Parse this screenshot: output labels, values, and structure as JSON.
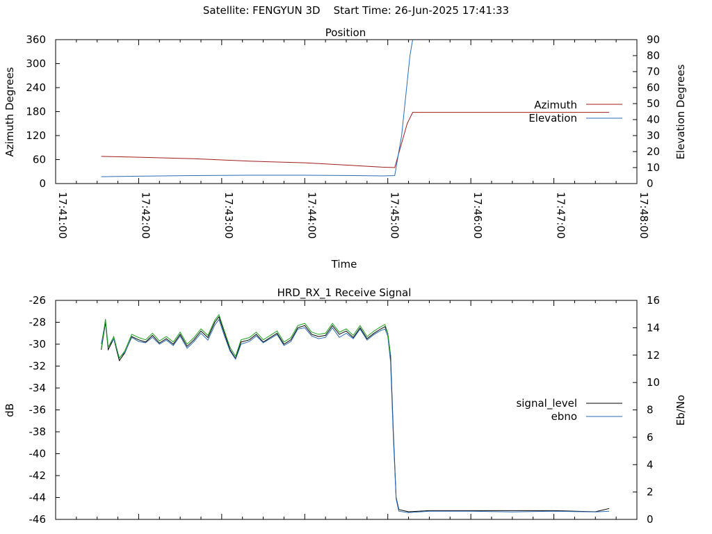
{
  "header": {
    "satellite": "Satellite: FENGYUN 3D",
    "start_time": "Start Time: 26-Jun-2025 17:41:33"
  },
  "colors": {
    "red": "#a01a1a",
    "blue": "#2a6ab8",
    "green": "#1aa01a",
    "black": "#000000"
  },
  "chart_data": [
    {
      "type": "line",
      "title": "Position",
      "xlabel": "Time",
      "ylabel": "Azimuth Degrees",
      "y2label": "Elevation Degrees",
      "x_unit": "seconds since 17:41:00",
      "xlim": [
        0,
        420
      ],
      "x_ticks": [
        "17:41:00",
        "17:42:00",
        "17:43:00",
        "17:44:00",
        "17:45:00",
        "17:46:00",
        "17:47:00",
        "17:48:00"
      ],
      "ylim": [
        0,
        360
      ],
      "y_ticks": [
        0,
        60,
        120,
        180,
        240,
        300,
        360
      ],
      "y2lim": [
        0,
        90
      ],
      "y2_ticks": [
        0,
        10,
        20,
        30,
        40,
        50,
        60,
        70,
        80,
        90
      ],
      "legend_position": "right",
      "series": [
        {
          "name": "Azimuth",
          "axis": "y",
          "color": "red",
          "points": [
            [
              33,
              68
            ],
            [
              60,
              66
            ],
            [
              100,
              62
            ],
            [
              140,
              56
            ],
            [
              180,
              52
            ],
            [
              216,
              45
            ],
            [
              236,
              41
            ],
            [
              245,
              40
            ],
            [
              254,
              150
            ],
            [
              258,
              178
            ],
            [
              300,
              178
            ],
            [
              360,
              178
            ],
            [
              400,
              178
            ]
          ]
        },
        {
          "name": "Elevation",
          "axis": "y2",
          "color": "blue",
          "points": [
            [
              33,
              4.3
            ],
            [
              60,
              4.6
            ],
            [
              100,
              5
            ],
            [
              140,
              5.2
            ],
            [
              180,
              5.2
            ],
            [
              216,
              5
            ],
            [
              236,
              4.8
            ],
            [
              245,
              5
            ],
            [
              250,
              30
            ],
            [
              256,
              80
            ],
            [
              258,
              90
            ]
          ]
        }
      ]
    },
    {
      "type": "line",
      "title": "HRD_RX_1 Receive Signal",
      "ylabel": "dB",
      "y2label": "Eb/No",
      "x_unit": "seconds since 17:41:00",
      "xlim": [
        0,
        420
      ],
      "ylim": [
        -46,
        -26
      ],
      "y_ticks": [
        -46,
        -44,
        -42,
        -40,
        -38,
        -36,
        -34,
        -32,
        -30,
        -28,
        -26
      ],
      "y2lim": [
        0,
        16
      ],
      "y2_ticks": [
        0,
        2,
        4,
        6,
        8,
        10,
        12,
        14,
        16
      ],
      "legend_position": "right",
      "series": [
        {
          "name": "signal_level",
          "axis": "y",
          "color": "black",
          "points": [
            [
              33,
              -30.5
            ],
            [
              36,
              -28
            ],
            [
              38,
              -30.5
            ],
            [
              42,
              -29.5
            ],
            [
              46,
              -31.5
            ],
            [
              50,
              -30.8
            ],
            [
              55,
              -29.3
            ],
            [
              60,
              -29.6
            ],
            [
              65,
              -29.8
            ],
            [
              70,
              -29.2
            ],
            [
              75,
              -29.9
            ],
            [
              80,
              -29.5
            ],
            [
              85,
              -30
            ],
            [
              90,
              -29.1
            ],
            [
              95,
              -30.2
            ],
            [
              100,
              -29.6
            ],
            [
              105,
              -28.8
            ],
            [
              110,
              -29.4
            ],
            [
              115,
              -28
            ],
            [
              118,
              -27.5
            ],
            [
              122,
              -29
            ],
            [
              126,
              -30.5
            ],
            [
              130,
              -31.3
            ],
            [
              134,
              -29.8
            ],
            [
              140,
              -29.6
            ],
            [
              145,
              -29.1
            ],
            [
              150,
              -29.8
            ],
            [
              155,
              -29.4
            ],
            [
              160,
              -29
            ],
            [
              165,
              -30
            ],
            [
              170,
              -29.6
            ],
            [
              175,
              -28.5
            ],
            [
              180,
              -28.3
            ],
            [
              185,
              -29.1
            ],
            [
              190,
              -29.3
            ],
            [
              195,
              -29.2
            ],
            [
              200,
              -28.3
            ],
            [
              205,
              -29.1
            ],
            [
              210,
              -28.8
            ],
            [
              215,
              -29.4
            ],
            [
              220,
              -28.5
            ],
            [
              225,
              -29.5
            ],
            [
              230,
              -29
            ],
            [
              235,
              -28.6
            ],
            [
              238,
              -28.4
            ],
            [
              240,
              -29
            ],
            [
              242,
              -31
            ],
            [
              244,
              -38
            ],
            [
              246,
              -44
            ],
            [
              248,
              -45.1
            ],
            [
              255,
              -45.3
            ],
            [
              270,
              -45.2
            ],
            [
              300,
              -45.2
            ],
            [
              330,
              -45.2
            ],
            [
              360,
              -45.2
            ],
            [
              390,
              -45.3
            ],
            [
              400,
              -45
            ]
          ]
        },
        {
          "name": "ebno",
          "axis": "y2",
          "color": "blue",
          "points": [
            [
              33,
              12.8
            ],
            [
              36,
              14.5
            ],
            [
              38,
              12.6
            ],
            [
              42,
              13.2
            ],
            [
              46,
              11.8
            ],
            [
              50,
              12.2
            ],
            [
              55,
              13.3
            ],
            [
              60,
              13
            ],
            [
              65,
              12.9
            ],
            [
              70,
              13.3
            ],
            [
              75,
              12.8
            ],
            [
              80,
              13.1
            ],
            [
              85,
              12.7
            ],
            [
              90,
              13.4
            ],
            [
              95,
              12.5
            ],
            [
              100,
              13
            ],
            [
              105,
              13.6
            ],
            [
              110,
              13.1
            ],
            [
              115,
              14.2
            ],
            [
              118,
              14.6
            ],
            [
              122,
              13.4
            ],
            [
              126,
              12.3
            ],
            [
              130,
              11.7
            ],
            [
              134,
              12.8
            ],
            [
              140,
              13
            ],
            [
              145,
              13.4
            ],
            [
              150,
              12.9
            ],
            [
              155,
              13.2
            ],
            [
              160,
              13.5
            ],
            [
              165,
              12.7
            ],
            [
              170,
              13
            ],
            [
              175,
              13.9
            ],
            [
              180,
              14
            ],
            [
              185,
              13.4
            ],
            [
              190,
              13.2
            ],
            [
              195,
              13.3
            ],
            [
              200,
              14
            ],
            [
              205,
              13.3
            ],
            [
              210,
              13.6
            ],
            [
              215,
              13.2
            ],
            [
              220,
              13.9
            ],
            [
              225,
              13.1
            ],
            [
              230,
              13.5
            ],
            [
              235,
              13.8
            ],
            [
              238,
              13.9
            ],
            [
              240,
              13.4
            ],
            [
              242,
              11.5
            ],
            [
              244,
              6
            ],
            [
              246,
              1.5
            ],
            [
              248,
              0.6
            ],
            [
              255,
              0.5
            ],
            [
              270,
              0.6
            ],
            [
              300,
              0.6
            ],
            [
              330,
              0.55
            ],
            [
              360,
              0.6
            ],
            [
              390,
              0.55
            ],
            [
              400,
              0.6
            ]
          ]
        },
        {
          "name": "",
          "axis": "y",
          "color": "green",
          "points": [
            [
              33,
              -30.4
            ],
            [
              36,
              -27.7
            ],
            [
              38,
              -30.3
            ],
            [
              42,
              -29.3
            ],
            [
              46,
              -31.3
            ],
            [
              50,
              -30.6
            ],
            [
              55,
              -29.1
            ],
            [
              60,
              -29.4
            ],
            [
              65,
              -29.6
            ],
            [
              70,
              -29
            ],
            [
              75,
              -29.7
            ],
            [
              80,
              -29.3
            ],
            [
              85,
              -29.8
            ],
            [
              90,
              -28.9
            ],
            [
              95,
              -30
            ],
            [
              100,
              -29.4
            ],
            [
              105,
              -28.6
            ],
            [
              110,
              -29.2
            ],
            [
              115,
              -27.8
            ],
            [
              118,
              -27.3
            ],
            [
              122,
              -28.8
            ],
            [
              126,
              -30.3
            ],
            [
              130,
              -31.1
            ],
            [
              134,
              -29.6
            ],
            [
              140,
              -29.4
            ],
            [
              145,
              -28.9
            ],
            [
              150,
              -29.6
            ],
            [
              155,
              -29.2
            ],
            [
              160,
              -28.8
            ],
            [
              165,
              -29.8
            ],
            [
              170,
              -29.4
            ],
            [
              175,
              -28.3
            ],
            [
              180,
              -28.1
            ],
            [
              185,
              -28.9
            ],
            [
              190,
              -29.1
            ],
            [
              195,
              -29
            ],
            [
              200,
              -28.1
            ],
            [
              205,
              -28.9
            ],
            [
              210,
              -28.6
            ],
            [
              215,
              -29.2
            ],
            [
              220,
              -28.3
            ],
            [
              225,
              -29.3
            ],
            [
              230,
              -28.8
            ],
            [
              235,
              -28.4
            ],
            [
              238,
              -28.2
            ],
            [
              240,
              -29
            ],
            [
              242,
              -31
            ]
          ]
        }
      ]
    }
  ]
}
